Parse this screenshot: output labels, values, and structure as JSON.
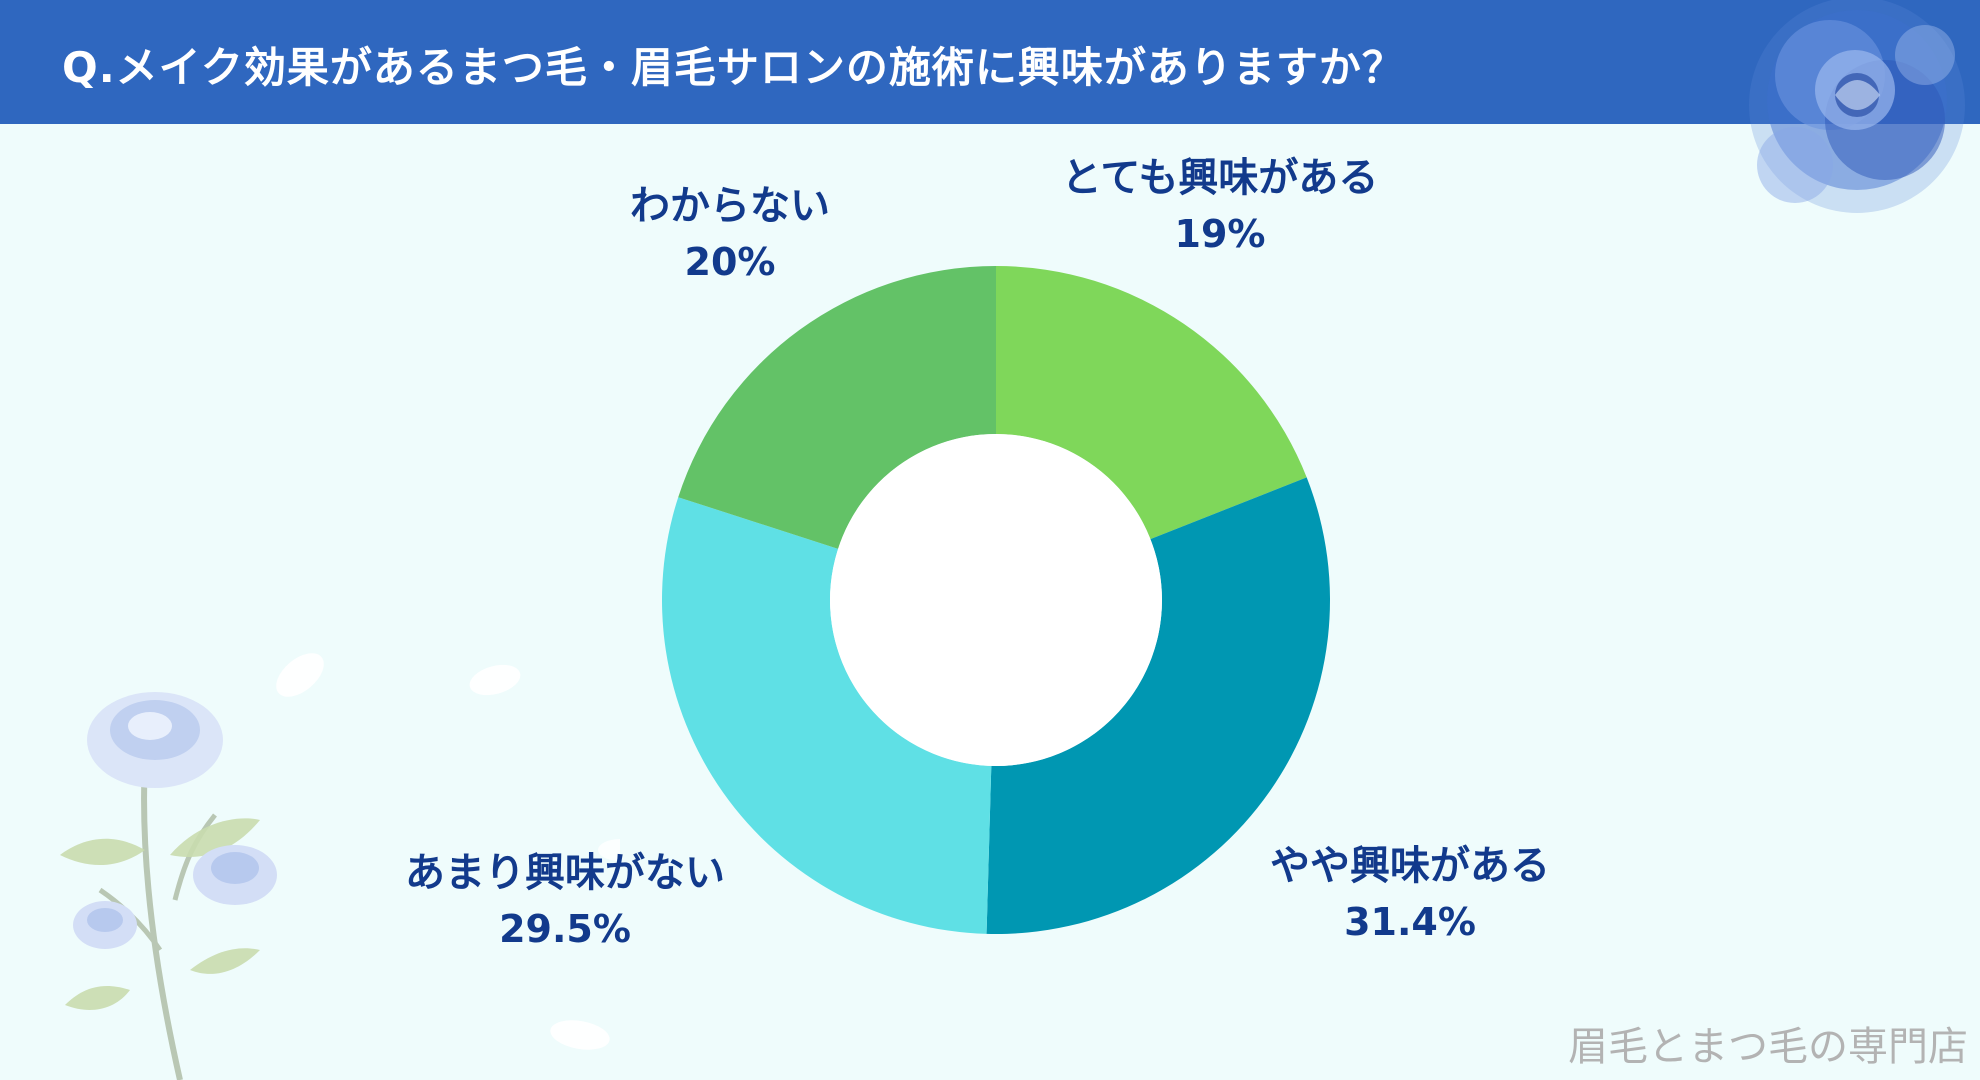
{
  "header": {
    "title": "Q.メイク効果があるまつ毛・眉毛サロンの施術に興味がありますか？"
  },
  "footer": {
    "text": "眉毛とまつ毛の専門店"
  },
  "chart_data": {
    "type": "pie",
    "donut": true,
    "title": "Q.メイク効果があるまつ毛・眉毛サロンの施術に興味がありますか？",
    "slices": [
      {
        "label": "とても興味がある",
        "value": 19,
        "display": "19%",
        "color": "#7fd75a"
      },
      {
        "label": "やや興味がある",
        "value": 31.4,
        "display": "31.4%",
        "color": "#0097b2"
      },
      {
        "label": "あまり興味がない",
        "value": 29.5,
        "display": "29.5%",
        "color": "#5fe0e5"
      },
      {
        "label": "わからない",
        "value": 20,
        "display": "20%",
        "color": "#63c267"
      }
    ],
    "start_angle": "12 o'clock",
    "direction": "clockwise",
    "center_color": "#ffffff",
    "label_text_color": "#123a8c"
  },
  "decorations": {
    "top_right": "blue-rose-icon",
    "bottom_left": "blue-rose-bouquet-icon"
  }
}
